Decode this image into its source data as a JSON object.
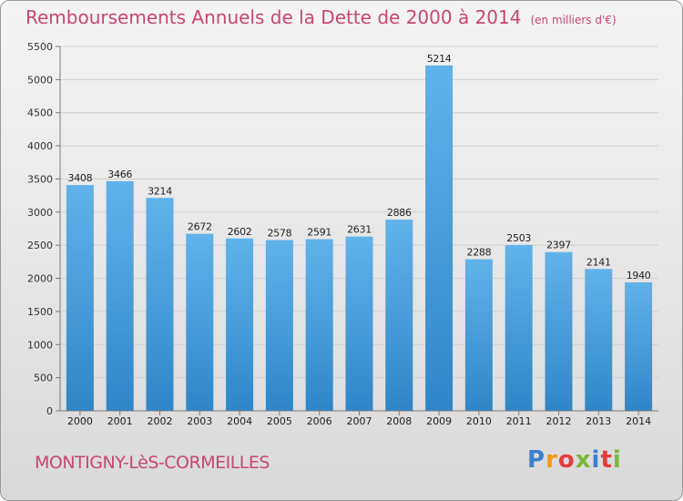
{
  "header": {
    "title": "Remboursements Annuels de la Dette de 2000 à 2014",
    "unit": "(en milliers d'€)"
  },
  "footer": {
    "city": "MONTIGNY-LèS-CORMEILLES",
    "logo": "Proxiti",
    "logo_colors": [
      "#3d7fd0",
      "#f29a1a",
      "#e63b3b",
      "#79b83a",
      "#3d7fd0",
      "#e63b3b",
      "#79b83a"
    ]
  },
  "colors": {
    "title": "#c8476f",
    "bar_light": "#62b2ea",
    "bar_dark": "#2f86c7",
    "grid": "#cfcfcf",
    "axis": "#7a7a7a"
  },
  "chart_data": {
    "type": "bar",
    "title": "Remboursements Annuels de la Dette de 2000 à 2014",
    "xlabel": "",
    "ylabel": "",
    "categories": [
      "2000",
      "2001",
      "2002",
      "2003",
      "2004",
      "2005",
      "2006",
      "2007",
      "2008",
      "2009",
      "2010",
      "2011",
      "2012",
      "2013",
      "2014"
    ],
    "values": [
      3408,
      3466,
      3214,
      2672,
      2602,
      2578,
      2591,
      2631,
      2886,
      5214,
      2288,
      2503,
      2397,
      2141,
      1940
    ],
    "ylim": [
      0,
      5500
    ],
    "yticks": [
      0,
      500,
      1000,
      1500,
      2000,
      2500,
      3000,
      3500,
      4000,
      4500,
      5000,
      5500
    ],
    "grid": true,
    "legend": "none"
  }
}
